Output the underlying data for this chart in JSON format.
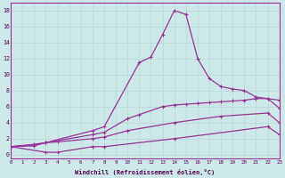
{
  "xlabel": "Windchill (Refroidissement éolien,°C)",
  "bg_color": "#cde8e8",
  "line_color": "#993399",
  "xlim": [
    0,
    23
  ],
  "ylim": [
    -0.5,
    19
  ],
  "xtick_labels": [
    "0",
    "1",
    "2",
    "3",
    "4",
    "5",
    "6",
    "7",
    "8",
    "9",
    "10",
    "11",
    "12",
    "13",
    "14",
    "15",
    "16",
    "17",
    "18",
    "19",
    "20",
    "21",
    "22",
    "23"
  ],
  "ytick_vals": [
    0,
    2,
    4,
    6,
    8,
    10,
    12,
    14,
    16,
    18
  ],
  "series_A_x": [
    0,
    2,
    3,
    7,
    8,
    11,
    12,
    13,
    14,
    15,
    16,
    17,
    18,
    19,
    20,
    21,
    22,
    23
  ],
  "series_A_y": [
    1.0,
    1.3,
    1.5,
    3.0,
    3.5,
    11.5,
    12.2,
    15.0,
    18.0,
    17.5,
    12.0,
    9.5,
    8.5,
    8.2,
    8.0,
    7.2,
    7.0,
    6.8
  ],
  "series_B_x": [
    0,
    2,
    3,
    7,
    8,
    10,
    11,
    13,
    14,
    15,
    16,
    17,
    18,
    19,
    20,
    21,
    22,
    23
  ],
  "series_B_y": [
    1.0,
    1.2,
    1.5,
    2.5,
    2.8,
    4.5,
    5.0,
    6.0,
    6.2,
    6.3,
    6.4,
    6.5,
    6.6,
    6.7,
    6.8,
    7.0,
    7.0,
    5.8
  ],
  "series_C_x": [
    0,
    2,
    3,
    4,
    7,
    8,
    10,
    14,
    18,
    22,
    23
  ],
  "series_C_y": [
    1.0,
    1.1,
    1.5,
    1.6,
    2.0,
    2.2,
    3.0,
    4.0,
    4.8,
    5.2,
    4.0
  ],
  "series_D_x": [
    0,
    3,
    4,
    7,
    8,
    14,
    22,
    23
  ],
  "series_D_y": [
    1.0,
    0.3,
    0.3,
    1.0,
    1.0,
    2.0,
    3.5,
    2.5
  ]
}
